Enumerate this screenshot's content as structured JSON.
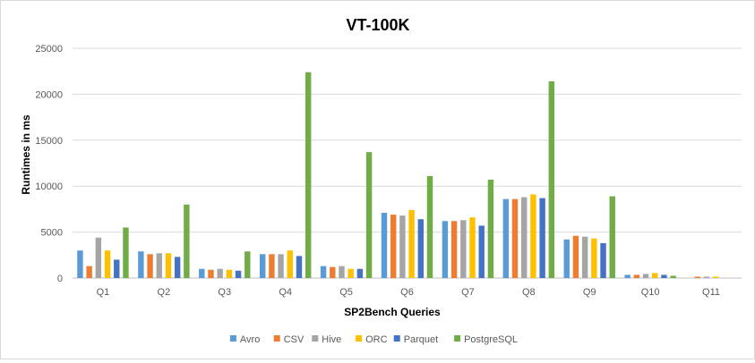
{
  "chart_data": {
    "type": "bar",
    "title": "VT-100K",
    "xlabel": "SP2Bench Queries",
    "ylabel": "Runtimes in ms",
    "ylim": [
      0,
      25000
    ],
    "yticks": [
      0,
      5000,
      10000,
      15000,
      20000,
      25000
    ],
    "grid": true,
    "legend_position": "bottom",
    "categories": [
      "Q1",
      "Q2",
      "Q3",
      "Q4",
      "Q5",
      "Q6",
      "Q7",
      "Q8",
      "Q9",
      "Q10",
      "Q11"
    ],
    "series": [
      {
        "name": "Avro",
        "color": "#5b9bd5",
        "values": [
          3000,
          2900,
          1000,
          2600,
          1300,
          7100,
          6200,
          8600,
          4200,
          350,
          0
        ]
      },
      {
        "name": "CSV",
        "color": "#ed7d31",
        "values": [
          1300,
          2600,
          900,
          2600,
          1200,
          6900,
          6200,
          8600,
          4600,
          350,
          150
        ]
      },
      {
        "name": "Hive",
        "color": "#a5a5a5",
        "values": [
          4400,
          2700,
          1000,
          2600,
          1300,
          6800,
          6300,
          8800,
          4500,
          450,
          150
        ]
      },
      {
        "name": "ORC",
        "color": "#ffc000",
        "values": [
          3000,
          2700,
          900,
          3000,
          1000,
          7400,
          6600,
          9100,
          4300,
          550,
          150
        ]
      },
      {
        "name": "Parquet",
        "color": "#4472c4",
        "values": [
          2000,
          2300,
          800,
          2400,
          1000,
          6400,
          5700,
          8700,
          3800,
          350,
          0
        ]
      },
      {
        "name": "PostgreSQL",
        "color": "#70ad47",
        "values": [
          5500,
          8000,
          2900,
          22400,
          13700,
          11100,
          10700,
          21400,
          8900,
          250,
          0
        ]
      }
    ]
  }
}
